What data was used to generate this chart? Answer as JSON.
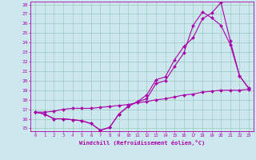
{
  "xlabel": "Windchill (Refroidissement éolien,°C)",
  "bg_color": "#cce8ee",
  "line_color": "#aa00aa",
  "grid_color": "#99ccbb",
  "xlim": [
    -0.5,
    23.5
  ],
  "ylim": [
    14.7,
    28.3
  ],
  "yticks": [
    15,
    16,
    17,
    18,
    19,
    20,
    21,
    22,
    23,
    24,
    25,
    26,
    27,
    28
  ],
  "xticks": [
    0,
    1,
    2,
    3,
    4,
    5,
    6,
    7,
    8,
    9,
    10,
    11,
    12,
    13,
    14,
    15,
    16,
    17,
    18,
    19,
    20,
    21,
    22,
    23
  ],
  "series": [
    {
      "x": [
        0,
        1,
        2,
        3,
        4,
        5,
        6,
        7,
        8,
        9,
        10,
        11,
        12,
        13,
        14,
        15,
        16,
        17,
        18,
        19,
        20,
        21,
        22,
        23
      ],
      "y": [
        16.7,
        16.5,
        16.0,
        16.0,
        15.9,
        15.8,
        15.5,
        14.8,
        15.1,
        16.5,
        17.3,
        17.8,
        18.5,
        20.1,
        20.4,
        22.2,
        23.6,
        24.5,
        26.5,
        27.1,
        28.2,
        24.2,
        20.5,
        19.2
      ]
    },
    {
      "x": [
        0,
        1,
        2,
        3,
        4,
        5,
        6,
        7,
        8,
        9,
        10,
        11,
        12,
        13,
        14,
        15,
        16,
        17,
        18,
        19,
        20,
        21,
        22,
        23
      ],
      "y": [
        16.7,
        16.5,
        16.0,
        16.0,
        15.9,
        15.8,
        15.5,
        14.8,
        15.1,
        16.5,
        17.3,
        17.8,
        18.1,
        19.7,
        20.0,
        21.5,
        22.9,
        25.8,
        27.2,
        26.6,
        25.8,
        23.8,
        20.5,
        19.2
      ]
    },
    {
      "x": [
        0,
        1,
        2,
        3,
        4,
        5,
        6,
        7,
        8,
        9,
        10,
        11,
        12,
        13,
        14,
        15,
        16,
        17,
        18,
        19,
        20,
        21,
        22,
        23
      ],
      "y": [
        16.7,
        16.7,
        16.8,
        17.0,
        17.1,
        17.1,
        17.1,
        17.2,
        17.3,
        17.4,
        17.5,
        17.7,
        17.8,
        18.0,
        18.1,
        18.3,
        18.5,
        18.6,
        18.8,
        18.9,
        19.0,
        19.0,
        19.0,
        19.1
      ]
    }
  ]
}
